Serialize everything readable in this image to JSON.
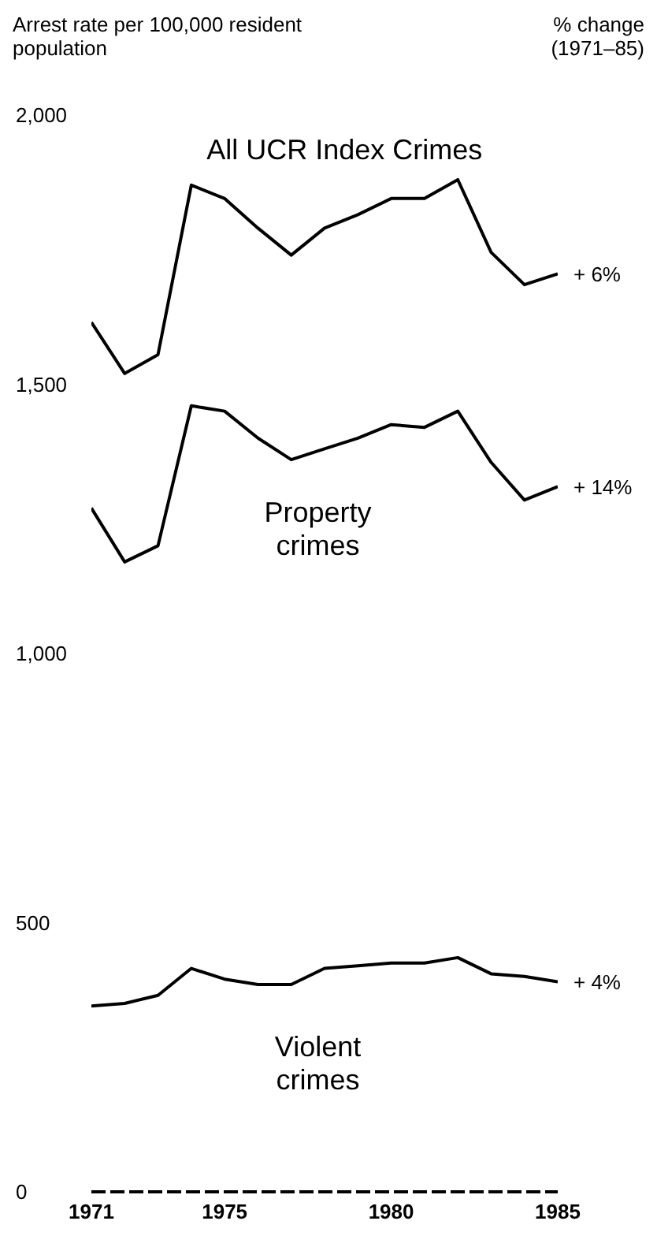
{
  "chart_data": {
    "type": "line",
    "ylabel": "Arrest rate per 100,000 resident population",
    "x": [
      1971,
      1972,
      1973,
      1974,
      1975,
      1976,
      1977,
      1978,
      1979,
      1980,
      1981,
      1982,
      1983,
      1984,
      1985
    ],
    "series": [
      {
        "name": "All UCR Index Crimes",
        "color": "#000000",
        "values": [
          1615,
          1520,
          1555,
          1870,
          1845,
          1790,
          1740,
          1790,
          1815,
          1845,
          1845,
          1880,
          1745,
          1685,
          1705
        ]
      },
      {
        "name": "Property crimes",
        "color": "#000000",
        "values": [
          1270,
          1170,
          1200,
          1460,
          1450,
          1400,
          1360,
          1380,
          1400,
          1425,
          1420,
          1450,
          1355,
          1285,
          1310
        ]
      },
      {
        "name": "Violent crimes",
        "color": "#000000",
        "values": [
          345,
          350,
          365,
          415,
          395,
          385,
          385,
          415,
          420,
          425,
          425,
          435,
          405,
          400,
          390
        ]
      }
    ],
    "xlim": [
      1971,
      1985
    ],
    "xticks": [
      1971,
      1975,
      1980,
      1985
    ],
    "ylim": [
      0,
      2000
    ],
    "yticks": [
      0,
      500,
      {
        "value": 1000,
        "label": "1,000"
      },
      {
        "value": 1500,
        "label": "1,500"
      },
      {
        "value": 2000,
        "label": "2,000"
      }
    ],
    "marker": "none",
    "line_style": "solid",
    "grid": false,
    "annotations": [
      "% change (1971–85)",
      "+ 6%",
      "+ 14%",
      "+ 4%"
    ]
  }
}
